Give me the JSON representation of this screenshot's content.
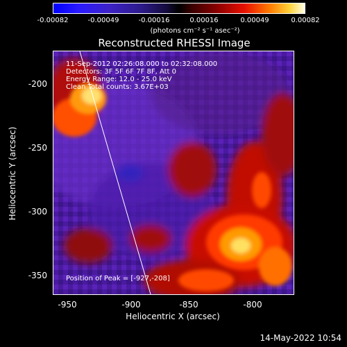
{
  "title": "Reconstructed RHESSI Image",
  "colorbar": {
    "ticks": [
      "-0.00082",
      "-0.00049",
      "-0.00016",
      "0.00016",
      "0.00049",
      "0.00082"
    ],
    "unit": "(photons cm⁻² s⁻¹ asec⁻²)"
  },
  "info": {
    "time": "11-Sep-2012 02:26:08.000 to 02:32:08.000",
    "detectors": "Detectors: 3F 5F 6F 7F 8F, Att 0",
    "energy": "Energy Range: 12.0 - 25.0 keV",
    "counts": "Clean    Total counts: 3.67E+03",
    "peak": "Position of Peak = [-927,-208]"
  },
  "axes": {
    "xlabel": "Heliocentric X (arcsec)",
    "ylabel": "Heliocentric Y (arcsec)",
    "xticks": [
      "-950",
      "-900",
      "-850",
      "-800"
    ],
    "yticks": [
      "-200",
      "-250",
      "-300",
      "-350"
    ]
  },
  "timestamp": "14-May-2022 10:54"
}
